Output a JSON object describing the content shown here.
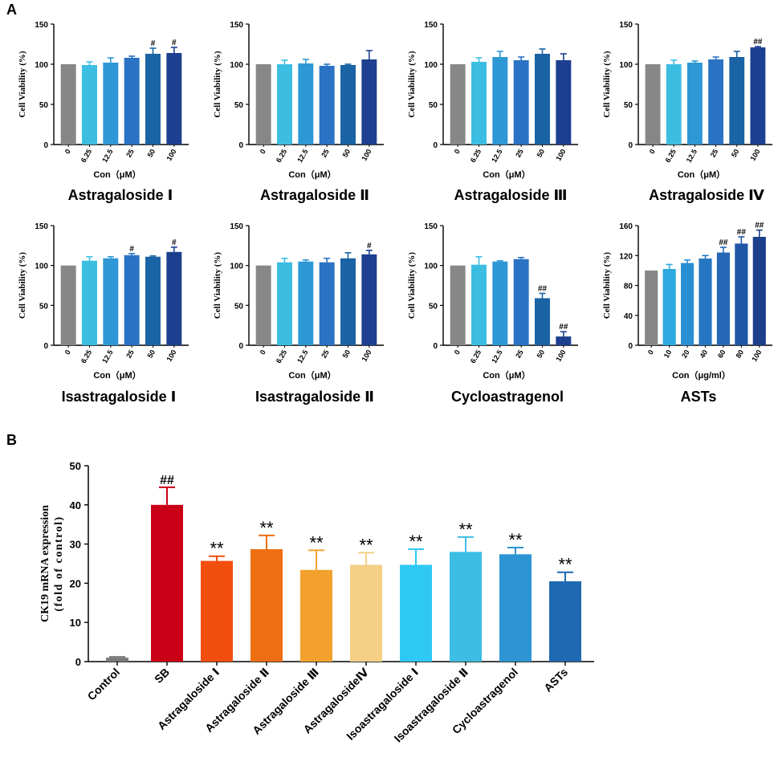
{
  "figure": {
    "panel_a_label": "A",
    "panel_b_label": "B"
  },
  "palettes": {
    "panelA": [
      "#878787",
      "#3cbde2",
      "#2e98d6",
      "#2a72c3",
      "#1a63a5",
      "#1d3f8f"
    ],
    "asts": [
      "#878787",
      "#2ea8e0",
      "#2a8fd2",
      "#2677c3",
      "#2568b5",
      "#1f56a6",
      "#1c3f8a",
      "#152b66"
    ],
    "panelB": [
      "#7a7a7a",
      "#c90016",
      "#f24e0e",
      "#ee6f12",
      "#f3a12d",
      "#f4cf84",
      "#2ec8f3",
      "#3bbde4",
      "#2d95d4",
      "#1f69b3"
    ]
  },
  "chart_data": [
    {
      "type": "bar",
      "title": "Astragaloside Ⅰ",
      "categories": [
        "0",
        "6.25",
        "12.5",
        "25",
        "50",
        "100"
      ],
      "values": [
        100,
        99,
        102,
        108,
        113,
        114
      ],
      "errors": [
        0,
        4,
        6,
        2,
        7,
        7
      ],
      "annotations": [
        "",
        "",
        "",
        "",
        "#",
        "#"
      ],
      "xlabel": "Con（μM）",
      "ylabel": "Cell Viability (%)",
      "ylim": [
        0,
        150
      ],
      "yticks": [
        "0",
        "50",
        "100",
        "150"
      ]
    },
    {
      "type": "bar",
      "title": "Astragaloside Ⅱ",
      "categories": [
        "0",
        "6.25",
        "12.5",
        "25",
        "50",
        "100"
      ],
      "values": [
        100,
        100,
        101,
        98,
        99,
        106
      ],
      "errors": [
        0,
        5,
        5,
        2,
        1,
        11
      ],
      "annotations": [
        "",
        "",
        "",
        "",
        "",
        ""
      ],
      "xlabel": "Con（μM）",
      "ylabel": "Cell Viability (%)",
      "ylim": [
        0,
        150
      ],
      "yticks": [
        "0",
        "50",
        "100",
        "150"
      ]
    },
    {
      "type": "bar",
      "title": "Astragaloside Ⅲ",
      "categories": [
        "0",
        "6.25",
        "12.5",
        "25",
        "50",
        "100"
      ],
      "values": [
        100,
        103,
        109,
        105,
        113,
        105
      ],
      "errors": [
        0,
        5,
        7,
        4,
        6,
        8
      ],
      "annotations": [
        "",
        "",
        "",
        "",
        "",
        ""
      ],
      "xlabel": "Con（μM）",
      "ylabel": "Cell Viability (%)",
      "ylim": [
        0,
        150
      ],
      "yticks": [
        "0",
        "50",
        "100",
        "150"
      ]
    },
    {
      "type": "bar",
      "title": "Astragaloside Ⅳ",
      "categories": [
        "0",
        "6.25",
        "12.5",
        "25",
        "50",
        "100"
      ],
      "values": [
        100,
        100,
        102,
        106,
        109,
        121
      ],
      "errors": [
        0,
        5,
        2,
        3,
        7,
        1
      ],
      "annotations": [
        "",
        "",
        "",
        "",
        "",
        "##"
      ],
      "xlabel": "Con（μM）",
      "ylabel": "Cell Viability (%)",
      "ylim": [
        0,
        150
      ],
      "yticks": [
        "0",
        "50",
        "100",
        "150"
      ]
    },
    {
      "type": "bar",
      "title": "Isastragaloside Ⅰ",
      "categories": [
        "0",
        "6.25",
        "12.5",
        "25",
        "50",
        "100"
      ],
      "values": [
        100,
        106,
        109,
        113,
        111,
        117
      ],
      "errors": [
        0,
        5,
        2,
        2,
        1,
        6
      ],
      "annotations": [
        "",
        "",
        "",
        "#",
        "",
        "#"
      ],
      "xlabel": "Con（μM）",
      "ylabel": "Cell Viability (%)",
      "ylim": [
        0,
        150
      ],
      "yticks": [
        "0",
        "50",
        "100",
        "150"
      ]
    },
    {
      "type": "bar",
      "title": "Isastragaloside Ⅱ",
      "categories": [
        "0",
        "6.25",
        "12.5",
        "25",
        "50",
        "100"
      ],
      "values": [
        100,
        104,
        105,
        104,
        109,
        114
      ],
      "errors": [
        0,
        5,
        2,
        5,
        7,
        5
      ],
      "annotations": [
        "",
        "",
        "",
        "",
        "",
        "#"
      ],
      "xlabel": "Con（μM）",
      "ylabel": "Cell Viability (%)",
      "ylim": [
        0,
        150
      ],
      "yticks": [
        "0",
        "50",
        "100",
        "150"
      ]
    },
    {
      "type": "bar",
      "title": "Cycloastragenol",
      "categories": [
        "0",
        "6.25",
        "12.5",
        "25",
        "50",
        "100"
      ],
      "values": [
        100,
        101,
        105,
        108,
        59,
        11
      ],
      "errors": [
        0,
        10,
        1,
        2,
        6,
        6
      ],
      "annotations": [
        "",
        "",
        "",
        "",
        "##",
        "##"
      ],
      "xlabel": "Con（μM）",
      "ylabel": "Cell Viability (%)",
      "ylim": [
        0,
        150
      ],
      "yticks": [
        "0",
        "50",
        "100",
        "150"
      ]
    },
    {
      "type": "bar",
      "title": "ASTs",
      "categories": [
        "0",
        "10",
        "20",
        "40",
        "60",
        "80",
        "100"
      ],
      "values": [
        100,
        102,
        110,
        116,
        124,
        136,
        145
      ],
      "errors": [
        0,
        6,
        4,
        4,
        7,
        9,
        9
      ],
      "annotations": [
        "",
        "",
        "",
        "",
        "##",
        "##",
        "##"
      ],
      "xlabel": "Con（μg/ml）",
      "ylabel": "Cell Viability (%)",
      "ylim": [
        0,
        160
      ],
      "yticks": [
        "0",
        "40",
        "80",
        "120",
        "160"
      ]
    },
    {
      "type": "bar",
      "title": "",
      "categories": [
        "Control",
        "SB",
        "Astragaloside Ⅰ",
        "Astragaloside Ⅱ",
        "Astragaloside Ⅲ",
        "AstragalosideⅣ",
        "Isoastragaloside Ⅰ",
        "Isoastragaloside Ⅱ",
        "Cycloastragenol",
        "ASTs"
      ],
      "values": [
        1,
        40,
        25.7,
        28.7,
        23.4,
        24.7,
        24.7,
        28.0,
        27.4,
        20.5
      ],
      "errors": [
        0.2,
        4.5,
        1.2,
        3.5,
        5.0,
        3.1,
        4.0,
        3.8,
        1.7,
        2.3
      ],
      "annotations": [
        "",
        "##",
        "**",
        "**",
        "**",
        "**",
        "**",
        "**",
        "**",
        "**"
      ],
      "xlabel": "",
      "ylabel": "CK19 mRNA expression",
      "ylabel2": "(fold of control)",
      "ylim": [
        0,
        50
      ],
      "yticks": [
        "0",
        "10",
        "20",
        "30",
        "40",
        "50"
      ]
    }
  ]
}
